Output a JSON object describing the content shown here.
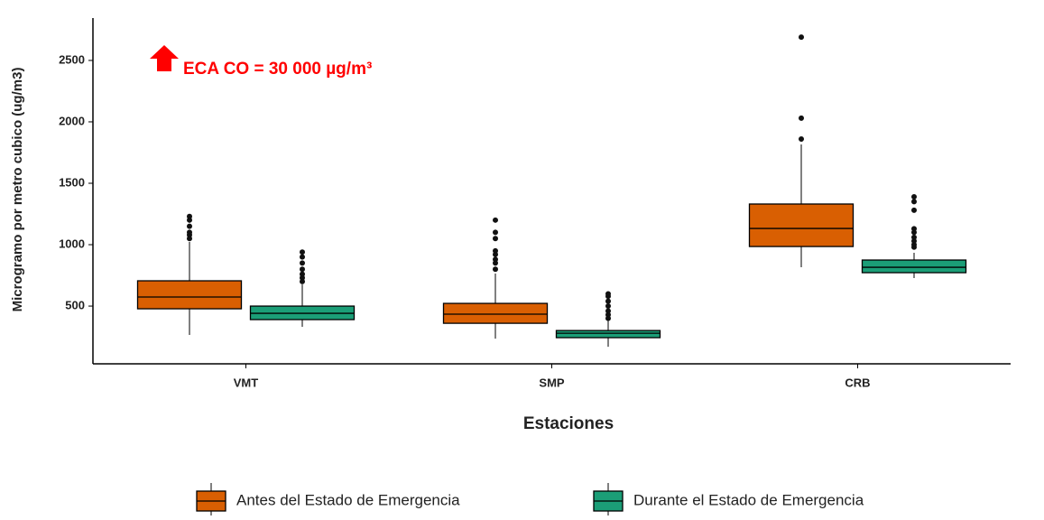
{
  "chart_data": {
    "type": "boxplot",
    "x_label": "Estaciones",
    "y_label": "Microgramo por metro cubico (ug/m3)",
    "annotation": "ECA CO = 30 000 µg/m³",
    "categories": [
      "VMT",
      "SMP",
      "CRB"
    ],
    "ylim": [
      30,
      2845
    ],
    "yticks": [
      500,
      1000,
      1500,
      2000,
      2500
    ],
    "legend_position": "bottom",
    "series": [
      {
        "name": "Antes del Estado de Emergencia",
        "color": "#d95f02",
        "values": [
          {
            "min": 265,
            "q1": 478,
            "median": 574,
            "q3": 706,
            "max": 1022,
            "outliers": [
              1050,
              1080,
              1100,
              1150,
              1200,
              1230
            ]
          },
          {
            "min": 235,
            "q1": 360,
            "median": 434,
            "q3": 522,
            "max": 765,
            "outliers": [
              800,
              850,
              880,
              920,
              950,
              1050,
              1100,
              1200
            ]
          },
          {
            "min": 816,
            "q1": 985,
            "median": 1132,
            "q3": 1331,
            "max": 1816,
            "outliers": [
              1860,
              2030,
              2690
            ]
          }
        ]
      },
      {
        "name": "Durante el Estado de Emergencia",
        "color": "#1b9e77",
        "values": [
          {
            "min": 331,
            "q1": 390,
            "median": 441,
            "q3": 500,
            "max": 676,
            "outliers": [
              700,
              730,
              760,
              800,
              850,
              900,
              940
            ]
          },
          {
            "min": 169,
            "q1": 243,
            "median": 279,
            "q3": 301,
            "max": 382,
            "outliers": [
              400,
              430,
              460,
              500,
              540,
              580,
              600
            ]
          },
          {
            "min": 728,
            "q1": 772,
            "median": 816,
            "q3": 875,
            "max": 934,
            "outliers": [
              980,
              1000,
              1030,
              1060,
              1100,
              1130,
              1280,
              1350,
              1390
            ]
          }
        ]
      }
    ]
  }
}
